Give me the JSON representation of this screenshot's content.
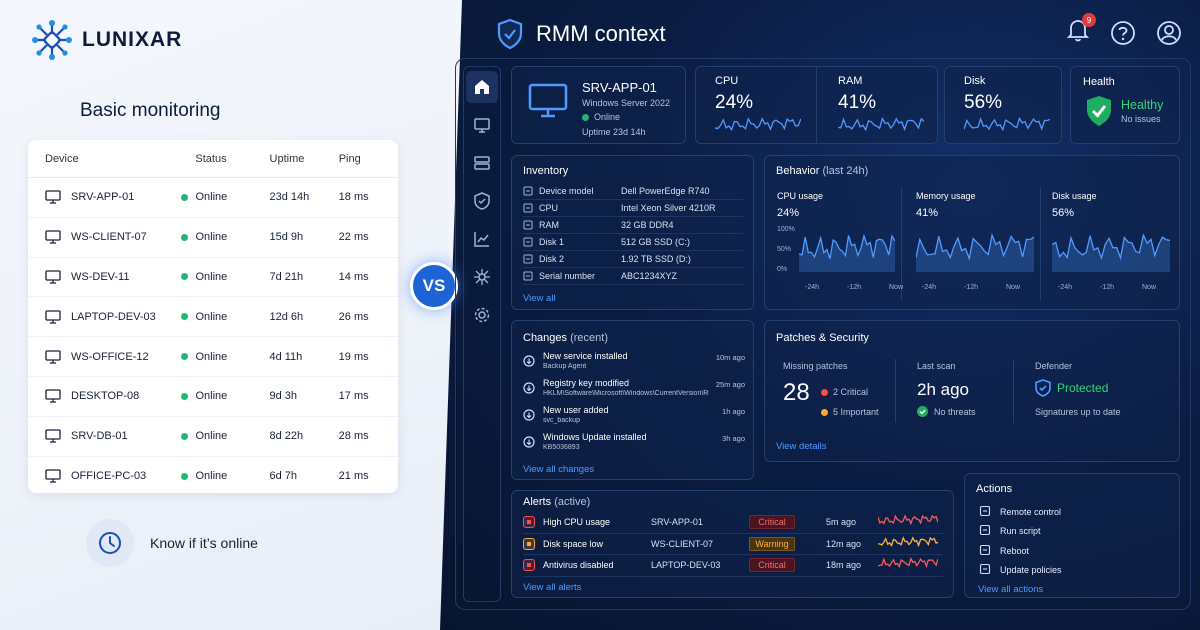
{
  "brand": {
    "name": "LUNIXAR"
  },
  "basic": {
    "title": "Basic monitoring",
    "columns": [
      "Device",
      "Status",
      "Uptime",
      "Ping"
    ],
    "rows": [
      {
        "device": "SRV-APP-01",
        "status": "Online",
        "uptime": "23d 14h",
        "ping": "18 ms"
      },
      {
        "device": "WS-CLIENT-07",
        "status": "Online",
        "uptime": "15d 9h",
        "ping": "22 ms"
      },
      {
        "device": "WS-DEV-11",
        "status": "Online",
        "uptime": "7d 21h",
        "ping": "14 ms"
      },
      {
        "device": "LAPTOP-DEV-03",
        "status": "Online",
        "uptime": "12d 6h",
        "ping": "26 ms"
      },
      {
        "device": "WS-OFFICE-12",
        "status": "Online",
        "uptime": "4d 11h",
        "ping": "19 ms"
      },
      {
        "device": "DESKTOP-08",
        "status": "Online",
        "uptime": "9d 3h",
        "ping": "17 ms"
      },
      {
        "device": "SRV-DB-01",
        "status": "Online",
        "uptime": "8d 22h",
        "ping": "28 ms"
      },
      {
        "device": "OFFICE-PC-03",
        "status": "Online",
        "uptime": "6d 7h",
        "ping": "21 ms"
      }
    ],
    "caption": "Know if it’s online"
  },
  "vs": "VS",
  "rmm": {
    "title": "RMM context",
    "notifications": "9",
    "device": {
      "name": "SRV-APP-01",
      "os": "Windows Server 2022",
      "status": "Online",
      "uptime": "Uptime 23d 14h"
    },
    "metrics": [
      {
        "label": "CPU",
        "value": "24%"
      },
      {
        "label": "RAM",
        "value": "41%"
      },
      {
        "label": "Disk",
        "value": "56%"
      }
    ],
    "health": {
      "label": "Health",
      "status": "Healthy",
      "sub": "No issues"
    },
    "inventory": {
      "title": "Inventory",
      "items": [
        {
          "key": "Device model",
          "value": "Dell PowerEdge R740"
        },
        {
          "key": "CPU",
          "value": "Intel Xeon Silver 4210R"
        },
        {
          "key": "RAM",
          "value": "32 GB DDR4"
        },
        {
          "key": "Disk 1",
          "value": "512 GB SSD (C:)"
        },
        {
          "key": "Disk 2",
          "value": "1.92 TB SSD (D:)"
        },
        {
          "key": "Serial number",
          "value": "ABC1234XYZ"
        }
      ],
      "link": "View all"
    },
    "behavior": {
      "title": "Behavior",
      "period": "(last 24h)",
      "charts": [
        {
          "label": "CPU usage",
          "value": "24%"
        },
        {
          "label": "Memory usage",
          "value": "41%"
        },
        {
          "label": "Disk usage",
          "value": "56%"
        }
      ],
      "yticks": [
        "100%",
        "50%",
        "0%"
      ],
      "xticks": [
        "-24h",
        "-12h",
        "Now"
      ]
    },
    "changes": {
      "title": "Changes",
      "subtitle": "(recent)",
      "items": [
        {
          "title": "New service installed",
          "detail": "Backup Agent",
          "time": "10m ago"
        },
        {
          "title": "Registry key modified",
          "detail": "HKLM\\Software\\Microsoft\\Windows\\CurrentVersion\\Run",
          "time": "25m ago"
        },
        {
          "title": "New user added",
          "detail": "svc_backup",
          "time": "1h ago"
        },
        {
          "title": "Windows Update installed",
          "detail": "KB5036893",
          "time": "3h ago"
        }
      ],
      "link": "View all changes"
    },
    "patches": {
      "title": "Patches & Security",
      "missing_label": "Missing patches",
      "missing_count": "28",
      "critical": "2 Critical",
      "important": "5 Important",
      "scan_label": "Last scan",
      "scan_value": "2h ago",
      "scan_status": "No threats",
      "defender_label": "Defender",
      "defender_status": "Protected",
      "defender_sub": "Signatures up to date",
      "link": "View details"
    },
    "alerts": {
      "title": "Alerts",
      "subtitle": "(active)",
      "items": [
        {
          "name": "High CPU usage",
          "device": "SRV-APP-01",
          "severity": "Critical",
          "time": "5m ago"
        },
        {
          "name": "Disk space low",
          "device": "WS-CLIENT-07",
          "severity": "Warning",
          "time": "12m ago"
        },
        {
          "name": "Antivirus disabled",
          "device": "LAPTOP-DEV-03",
          "severity": "Critical",
          "time": "18m ago"
        }
      ],
      "link": "View all alerts"
    },
    "actions": {
      "title": "Actions",
      "items": [
        "Remote control",
        "Run script",
        "Reboot",
        "Update policies"
      ],
      "link": "View all actions"
    }
  }
}
